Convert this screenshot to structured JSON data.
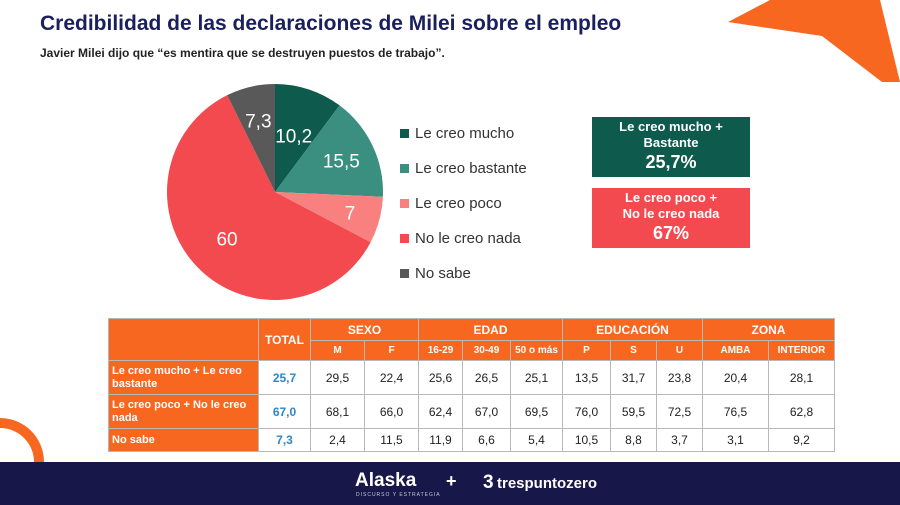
{
  "title": "Credibilidad de las declaraciones de Milei sobre el empleo",
  "subtitle": "Javier Milei dijo que “es mentira que se destruyen puestos de trabajo”.",
  "colors": {
    "navy": "#1a1f5e",
    "orange": "#f86720",
    "dark_green": "#0e5a4c",
    "teal": "#3a8f80",
    "salmon": "#f88180",
    "red": "#f24a4f",
    "gray": "#595959"
  },
  "chart_data": [
    {
      "type": "pie",
      "slices": [
        {
          "name": "Le creo mucho",
          "label": "10,2",
          "value": 10.2,
          "color": "#0e5a4c"
        },
        {
          "name": "Le creo bastante",
          "label": "15,5",
          "value": 15.5,
          "color": "#3a8f80"
        },
        {
          "name": "Le creo poco",
          "label": "7",
          "value": 7,
          "color": "#f88180"
        },
        {
          "name": "No le creo nada",
          "label": "60",
          "value": 60,
          "color": "#f24a4f"
        },
        {
          "name": "No sabe",
          "label": "7,3",
          "value": 7.3,
          "color": "#595959"
        }
      ]
    },
    {
      "type": "table",
      "header": {
        "total": "TOTAL",
        "groups": [
          "SEXO",
          "EDAD",
          "EDUCACIÓN",
          "ZONA"
        ]
      },
      "subheaders": [
        "M",
        "F",
        "16-29",
        "30-49",
        "50 o más",
        "P",
        "S",
        "U",
        "AMBA",
        "INTERIOR"
      ],
      "rows": [
        {
          "label": "Le creo mucho + Le creo bastante",
          "total": "25,7",
          "values": [
            "29,5",
            "22,4",
            "25,6",
            "26,5",
            "25,1",
            "13,5",
            "31,7",
            "23,8",
            "20,4",
            "28,1"
          ]
        },
        {
          "label": "Le creo poco + No le creo nada",
          "total": "67,0",
          "values": [
            "68,1",
            "66,0",
            "62,4",
            "67,0",
            "69,5",
            "76,0",
            "59,5",
            "72,5",
            "76,5",
            "62,8"
          ]
        },
        {
          "label": "No sabe",
          "total": "7,3",
          "values": [
            "2,4",
            "11,5",
            "11,9",
            "6,6",
            "5,4",
            "10,5",
            "8,8",
            "3,7",
            "3,1",
            "9,2"
          ]
        }
      ]
    }
  ],
  "summary": [
    {
      "label_line1": "Le creo mucho +",
      "label_line2": "Bastante",
      "value": "25,7%"
    },
    {
      "label_line1": "Le creo poco +",
      "label_line2": "No le creo nada",
      "value": "67%"
    }
  ],
  "footer": {
    "brand1": "Alaska",
    "brand1_tagline": "DISCURSO Y ESTRATEGIA",
    "plus": "+",
    "brand2_icon": "3",
    "brand2": "trespuntozero"
  }
}
